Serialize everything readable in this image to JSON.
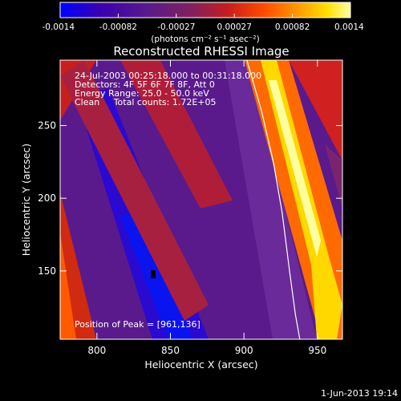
{
  "chart_data": {
    "type": "heatmap",
    "title": "Reconstructed RHESSI Image",
    "xlabel": "Heliocentric X (arcsec)",
    "ylabel": "Heliocentric Y (arcsec)",
    "xlim": [
      775,
      967
    ],
    "ylim": [
      103,
      295
    ],
    "x_ticks": [
      800,
      850,
      900,
      950
    ],
    "y_ticks": [
      150,
      200,
      250
    ],
    "colorbar": {
      "min": -0.0014,
      "max": 0.0014,
      "ticks": [
        "-0.0014",
        "-0.00082",
        "-0.00027",
        "0.00027",
        "0.00082",
        "0.0014"
      ],
      "unit_label": "(photons cm⁻² s⁻¹ asec⁻²)",
      "colormap": [
        "#0000ff",
        "#3a00b0",
        "#5a1a8c",
        "#802060",
        "#c81e1e",
        "#ff4a00",
        "#ff9a00",
        "#ffe000",
        "#ffffa8"
      ]
    },
    "annotations": [
      "24-Jul-2003 00:25:18.000 to 00:31:18.000",
      "Detectors: 4F 5F 6F 7F 8F, Att 0",
      "Energy Range: 25.0 - 50.0 keV",
      "Clean     Total counts: 1.72E+05"
    ],
    "peak_label": "Position of Peak = [961,136]",
    "peak_position": [
      961,
      136
    ],
    "limb_curve": [
      [
        902,
        295
      ],
      [
        912,
        260
      ],
      [
        920,
        225
      ],
      [
        926,
        190
      ],
      [
        931,
        150
      ],
      [
        935,
        120
      ],
      [
        938,
        103
      ]
    ],
    "timestamp": "1-Jun-2013 19:14"
  }
}
